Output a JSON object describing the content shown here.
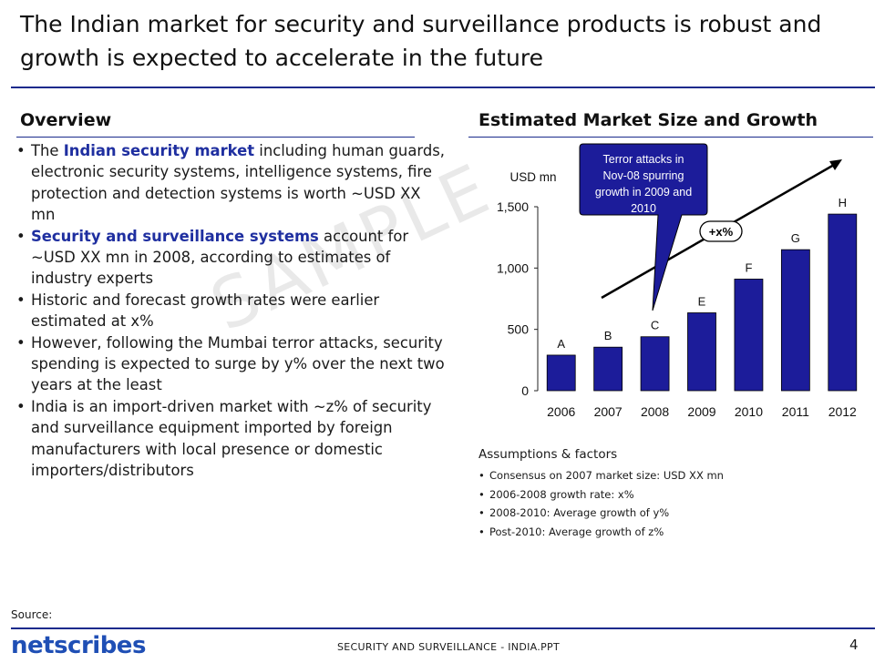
{
  "title": "The Indian market for security and surveillance products is robust and growth is expected to accelerate in the future",
  "overview": {
    "heading": "Overview",
    "bullets": [
      {
        "pre": "The ",
        "highlight": "Indian security market",
        "post": " including human guards, electronic security systems, intelligence systems, fire protection and detection systems is worth ~USD XX mn"
      },
      {
        "pre": "",
        "highlight": "Security and surveillance systems",
        "post": " account for ~USD XX mn in 2008, according to estimates of industry experts"
      },
      {
        "pre": "Historic and forecast growth rates were earlier estimated at x%",
        "highlight": "",
        "post": ""
      },
      {
        "pre": "However, following the Mumbai terror attacks, security spending is expected to surge by y% over the next two years at the least",
        "highlight": "",
        "post": ""
      },
      {
        "pre": "India is an import-driven market with ~z% of security and surveillance equipment imported by foreign manufacturers with local presence or domestic importers/distributors",
        "highlight": "",
        "post": ""
      }
    ]
  },
  "watermark": "SAMPLE",
  "chart_heading": "Estimated Market Size and Growth",
  "chart_data": {
    "type": "bar",
    "unit_label": "USD mn",
    "categories": [
      "2006",
      "2007",
      "2008",
      "2009",
      "2010",
      "2011",
      "2012"
    ],
    "values": [
      290,
      355,
      440,
      635,
      910,
      1150,
      1440
    ],
    "bar_labels": [
      "A",
      "B",
      "C",
      "E",
      "F",
      "G",
      "H"
    ],
    "ylim": [
      0,
      1500
    ],
    "yticks": [
      0,
      500,
      1000,
      1500
    ],
    "ytick_labels": [
      "0",
      "500",
      "1,000",
      "1,500"
    ],
    "growth_label": "+x%",
    "callout": [
      "Terror attacks in",
      "Nov-08 spurring",
      "growth in 2009 and",
      "2010"
    ],
    "bar_color": "#1c1c9a",
    "callout_color": "#1c1c9a"
  },
  "assumptions": {
    "title": "Assumptions & factors",
    "items": [
      "Consensus on 2007 market size: USD XX mn",
      "2006-2008 growth rate: x%",
      "2008-2010: Average growth of y%",
      "Post-2010: Average growth of z%"
    ]
  },
  "footer": {
    "source": "Source:",
    "logo": "netscribes",
    "center": "SECURITY AND SURVEILLANCE - INDIA.PPT",
    "page": "4"
  }
}
